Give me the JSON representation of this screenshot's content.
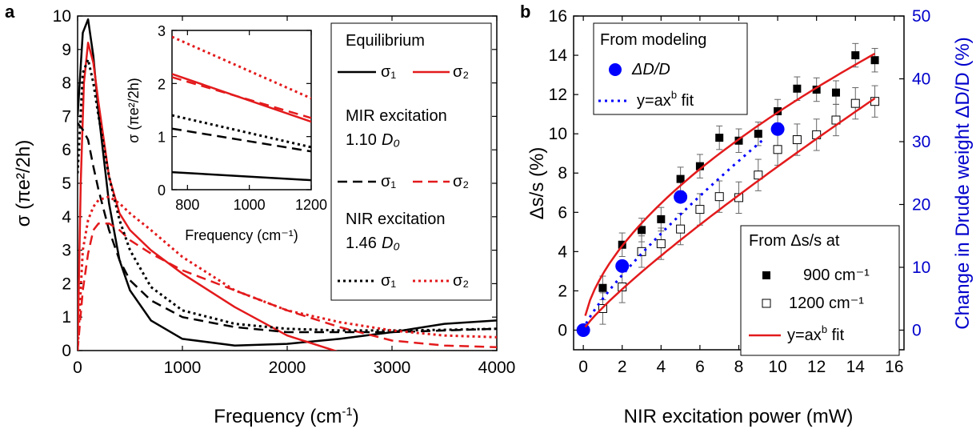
{
  "panel_a": {
    "label": "a",
    "xlabel_main": "Frequency (cm",
    "xlabel_sup": "-1",
    "xlabel_end": ")",
    "ylabel": "σ (πe²/2h)",
    "legend": {
      "heading1": "Equilibrium",
      "sig1": "σ₁",
      "sig2": "σ₂",
      "heading2": "MIR excitation",
      "mir_value": "1.10",
      "heading3": "NIR excitation",
      "nir_value": "1.46",
      "d0": "D₀"
    },
    "inset": {
      "xlabel": "Frequency (cm⁻¹)",
      "ylabel": "σ (πe²/2h)"
    }
  },
  "panel_b": {
    "label": "b",
    "xlabel": "NIR excitation power (mW)",
    "ylabel_left": "Δs/s (%)",
    "ylabel_right": "Change in Drude weight ΔD/D (%)",
    "legend_top": {
      "heading": "From modeling",
      "item1": "ΔD/D",
      "item2": "y=ax",
      "item2_sup": "b",
      "item2_end": " fit"
    },
    "legend_bottom": {
      "heading": "From Δs/s at",
      "item1": "900 cm⁻¹",
      "item2": "1200 cm⁻¹",
      "item3": "y=ax",
      "item3_sup": "b",
      "item3_end": " fit"
    }
  },
  "colors": {
    "black": "#000000",
    "red": "#e31a1c",
    "blue": "#0000ff"
  },
  "chart_data": [
    {
      "type": "line",
      "title": "",
      "xlabel": "Frequency (cm⁻¹)",
      "ylabel": "σ (πe²/2h)",
      "xlim": [
        0,
        4000
      ],
      "ylim": [
        0,
        10
      ],
      "xticks": [
        0,
        1000,
        2000,
        3000,
        4000
      ],
      "yticks": [
        0,
        1,
        2,
        3,
        4,
        5,
        6,
        7,
        8,
        9,
        10
      ],
      "grid": false,
      "legend_position": "top-right",
      "series": [
        {
          "name": "Equilibrium σ₁",
          "color": "#000000",
          "dash": "solid",
          "x": [
            0,
            50,
            100,
            150,
            200,
            300,
            400,
            500,
            700,
            1000,
            1500,
            2000,
            2500,
            3000,
            3500,
            4000
          ],
          "y": [
            7.0,
            9.5,
            9.9,
            8.8,
            7.1,
            4.4,
            2.7,
            1.8,
            0.9,
            0.35,
            0.15,
            0.2,
            0.35,
            0.55,
            0.8,
            0.9
          ]
        },
        {
          "name": "Equilibrium σ₂",
          "color": "#e31a1c",
          "dash": "solid",
          "x": [
            0,
            30,
            60,
            100,
            150,
            200,
            300,
            400,
            500,
            700,
            1000,
            1500,
            2000,
            2500,
            3000,
            3500,
            4000
          ],
          "y": [
            0,
            5.0,
            8.0,
            9.2,
            8.6,
            7.4,
            5.2,
            4.1,
            3.6,
            3.0,
            2.3,
            1.3,
            0.45,
            -0.05,
            -0.3,
            -0.35,
            -0.4
          ]
        },
        {
          "name": "MIR excitation σ₁",
          "color": "#000000",
          "dash": "dash",
          "x": [
            0,
            50,
            100,
            150,
            200,
            300,
            400,
            500,
            700,
            1000,
            1500,
            2000,
            2500,
            3000,
            3500,
            4000
          ],
          "y": [
            6.8,
            6.6,
            6.3,
            5.5,
            4.8,
            3.6,
            2.7,
            2.1,
            1.5,
            1.0,
            0.7,
            0.55,
            0.55,
            0.55,
            0.6,
            0.65
          ]
        },
        {
          "name": "MIR excitation σ₂",
          "color": "#e31a1c",
          "dash": "dash",
          "x": [
            0,
            50,
            100,
            150,
            200,
            300,
            400,
            500,
            700,
            1000,
            1500,
            2000,
            2500,
            3000,
            3500,
            4000
          ],
          "y": [
            0,
            1.8,
            2.9,
            3.6,
            3.8,
            3.8,
            3.6,
            3.3,
            2.9,
            2.4,
            1.8,
            1.2,
            0.7,
            0.3,
            0.15,
            0.1
          ]
        },
        {
          "name": "NIR excitation σ₁",
          "color": "#000000",
          "dash": "dot",
          "x": [
            0,
            50,
            100,
            150,
            200,
            300,
            400,
            500,
            700,
            1000,
            1500,
            2000,
            2500,
            3000,
            3500,
            4000
          ],
          "y": [
            5.3,
            8.3,
            8.7,
            8.0,
            7.0,
            5.2,
            3.9,
            3.0,
            1.9,
            1.2,
            0.8,
            0.65,
            0.6,
            0.6,
            0.62,
            0.65
          ]
        },
        {
          "name": "NIR excitation σ₂",
          "color": "#e31a1c",
          "dash": "dot",
          "x": [
            0,
            50,
            100,
            150,
            200,
            300,
            400,
            500,
            700,
            1000,
            1500,
            2000,
            2500,
            3000,
            3500,
            4000
          ],
          "y": [
            0,
            3.0,
            3.9,
            4.3,
            4.5,
            4.6,
            4.4,
            4.1,
            3.6,
            2.8,
            1.8,
            1.2,
            0.85,
            0.6,
            0.45,
            0.4
          ]
        }
      ]
    },
    {
      "type": "line",
      "title": "",
      "xlabel": "Frequency (cm⁻¹)",
      "ylabel": "σ (πe²/2h)",
      "xlim": [
        750,
        1200
      ],
      "ylim": [
        0,
        3
      ],
      "xticks": [
        800,
        1000,
        1200
      ],
      "yticks": [
        0,
        1,
        2,
        3
      ],
      "grid": false,
      "series": [
        {
          "name": "Equilibrium σ₁",
          "color": "#000000",
          "dash": "solid",
          "x": [
            750,
            1200
          ],
          "y": [
            0.33,
            0.18
          ]
        },
        {
          "name": "Equilibrium σ₂",
          "color": "#e31a1c",
          "dash": "solid",
          "x": [
            750,
            1200
          ],
          "y": [
            2.18,
            1.28
          ]
        },
        {
          "name": "MIR excitation σ₁",
          "color": "#000000",
          "dash": "dash",
          "x": [
            750,
            1200
          ],
          "y": [
            1.15,
            0.72
          ]
        },
        {
          "name": "MIR excitation σ₂",
          "color": "#e31a1c",
          "dash": "dash",
          "x": [
            750,
            1200
          ],
          "y": [
            2.12,
            1.35
          ]
        },
        {
          "name": "NIR excitation σ₁",
          "color": "#000000",
          "dash": "dot",
          "x": [
            750,
            1200
          ],
          "y": [
            1.4,
            0.8
          ]
        },
        {
          "name": "NIR excitation σ₂",
          "color": "#e31a1c",
          "dash": "dot",
          "x": [
            750,
            1200
          ],
          "y": [
            2.88,
            1.72
          ]
        }
      ]
    },
    {
      "type": "scatter",
      "title": "",
      "xlabel": "NIR excitation power (mW)",
      "ylabel": "Δs/s (%)",
      "ylabel_right": "Change in Drude weight ΔD/D (%)",
      "xlim": [
        -0.5,
        16.5
      ],
      "ylim": [
        -1,
        16
      ],
      "ylim_right": [
        -3.125,
        50
      ],
      "xticks": [
        0,
        2,
        4,
        6,
        8,
        10,
        12,
        14,
        16
      ],
      "yticks": [
        0,
        2,
        4,
        6,
        8,
        10,
        12,
        14,
        16
      ],
      "yticks_right": [
        0,
        10,
        20,
        30,
        40,
        50
      ],
      "grid": false,
      "series": [
        {
          "name": "900 cm⁻¹",
          "marker": "filled-square",
          "color": "#000000",
          "x": [
            1,
            2,
            3,
            4,
            5,
            6,
            7,
            8,
            9,
            10,
            11,
            12,
            13,
            14,
            15
          ],
          "y": [
            2.15,
            4.35,
            5.1,
            5.65,
            7.7,
            8.35,
            9.8,
            9.65,
            10.0,
            11.15,
            12.3,
            12.25,
            12.1,
            14.0,
            13.75
          ],
          "err": [
            0.6,
            0.6,
            0.6,
            0.6,
            0.6,
            0.6,
            0.6,
            0.6,
            0.6,
            0.6,
            0.6,
            0.6,
            0.6,
            0.6,
            0.6
          ]
        },
        {
          "name": "1200 cm⁻¹",
          "marker": "open-square",
          "color": "#000000",
          "x": [
            1,
            2,
            3,
            4,
            5,
            6,
            7,
            8,
            9,
            10,
            11,
            12,
            13,
            14,
            15
          ],
          "y": [
            1.1,
            2.2,
            4.0,
            4.4,
            5.15,
            6.15,
            6.8,
            6.75,
            7.9,
            9.2,
            9.7,
            9.95,
            10.7,
            11.55,
            11.65
          ],
          "err": [
            0.8,
            0.8,
            0.8,
            0.8,
            0.8,
            0.8,
            0.8,
            0.8,
            0.8,
            0.8,
            0.8,
            0.8,
            0.8,
            0.8,
            0.8
          ]
        },
        {
          "name": "ΔD/D",
          "marker": "filled-circle",
          "color": "#0000ff",
          "axis": "right",
          "x": [
            0,
            2,
            5,
            10
          ],
          "y": [
            0,
            10.2,
            21.2,
            32.0
          ]
        },
        {
          "name": "y=axᵇ fit (900 cm⁻¹)",
          "line": "solid",
          "color": "#e31a1c",
          "fit": {
            "a": 2.85,
            "b": 0.59
          },
          "x_range": [
            0.1,
            15
          ]
        },
        {
          "name": "y=axᵇ fit (1200 cm⁻¹)",
          "line": "solid",
          "color": "#e31a1c",
          "fit": {
            "a": 1.15,
            "b": 0.86
          },
          "x_range": [
            0.1,
            15
          ]
        },
        {
          "name": "y=axᵇ fit (ΔD/D)",
          "line": "dot",
          "color": "#0000ff",
          "axis": "right",
          "fit": {
            "a": 5.0,
            "b": 0.81
          },
          "x_range": [
            0,
            9.3
          ]
        }
      ]
    }
  ]
}
